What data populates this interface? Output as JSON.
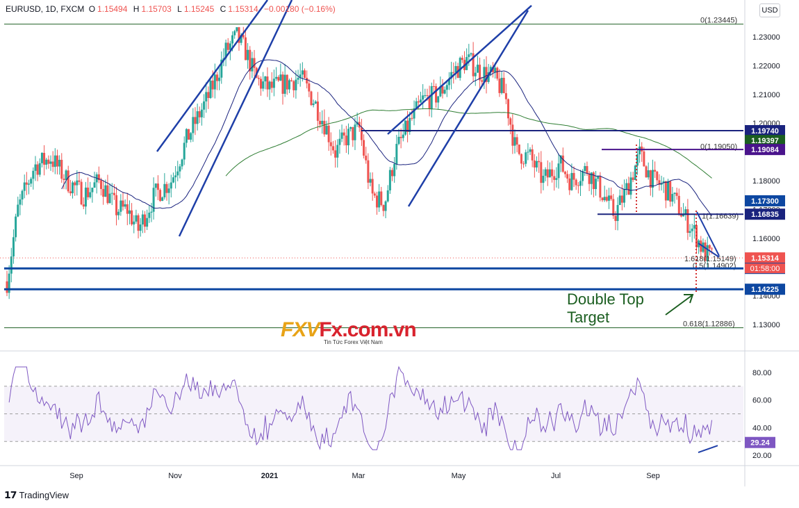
{
  "header": {
    "symbol": "EURUSD, 1D, FXCM",
    "open_label": "O",
    "open": "1.15494",
    "high_label": "H",
    "high": "1.15703",
    "low_label": "L",
    "low": "1.15245",
    "close_label": "C",
    "close": "1.15314",
    "change": "−0.00180 (−0.16%)"
  },
  "currency": "USD",
  "brand": "TradingView",
  "watermark": {
    "logo": "FXV",
    "site": "Fx.com.vn",
    "tagline": "Tin Tức Forex Việt Nam"
  },
  "annotation": {
    "line1": "Double Top",
    "line2": "Target"
  },
  "colors": {
    "up": "#26a69a",
    "down": "#ef5350",
    "ma50": "#1a237e",
    "ma200": "#2e7d32",
    "level": "#1a237e",
    "trend": "#1e3fa8",
    "rsi": "#7e57c2"
  },
  "chart_data": {
    "type": "candlestick",
    "price_axis": {
      "min": 1.122,
      "max": 1.238,
      "ticks": [
        "1.23000",
        "1.22000",
        "1.21000",
        "1.20000",
        "1.19000",
        "1.18000",
        "1.17000",
        "1.16000",
        "1.15000",
        "1.14000",
        "1.13000"
      ]
    },
    "time_axis": {
      "labels": [
        "Sep",
        "Nov",
        "2021",
        "Mar",
        "May",
        "Jul",
        "Sep"
      ]
    },
    "bars": 340,
    "ohlc_approx_path": [
      [
        0,
        1.145
      ],
      [
        10,
        1.17
      ],
      [
        25,
        1.185
      ],
      [
        40,
        1.188
      ],
      [
        55,
        1.18
      ],
      [
        70,
        1.175
      ],
      [
        85,
        1.18
      ],
      [
        100,
        1.17
      ],
      [
        110,
        1.17
      ],
      [
        120,
        1.163
      ],
      [
        135,
        1.175
      ],
      [
        150,
        1.18
      ],
      [
        165,
        1.195
      ],
      [
        185,
        1.21
      ],
      [
        200,
        1.225
      ],
      [
        210,
        1.23
      ],
      [
        218,
        1.225
      ],
      [
        228,
        1.215
      ],
      [
        240,
        1.212
      ],
      [
        255,
        1.214
      ],
      [
        268,
        1.216
      ],
      [
        280,
        1.208
      ],
      [
        290,
        1.2
      ],
      [
        300,
        1.19
      ],
      [
        310,
        1.195
      ],
      [
        322,
        1.198
      ],
      [
        333,
        1.175
      ],
      [
        345,
        1.172
      ],
      [
        355,
        1.19
      ],
      [
        368,
        1.2
      ],
      [
        380,
        1.208
      ],
      [
        395,
        1.21
      ],
      [
        408,
        1.218
      ],
      [
        420,
        1.222
      ],
      [
        432,
        1.218
      ],
      [
        445,
        1.216
      ],
      [
        455,
        1.21
      ],
      [
        465,
        1.19
      ],
      [
        478,
        1.188
      ],
      [
        490,
        1.18
      ],
      [
        505,
        1.186
      ],
      [
        515,
        1.18
      ],
      [
        530,
        1.184
      ],
      [
        545,
        1.175
      ],
      [
        555,
        1.168
      ],
      [
        565,
        1.176
      ],
      [
        578,
        1.189
      ],
      [
        590,
        1.18
      ],
      [
        600,
        1.178
      ],
      [
        610,
        1.173
      ],
      [
        618,
        1.168
      ],
      [
        628,
        1.162
      ],
      [
        637,
        1.155
      ],
      [
        645,
        1.153
      ]
    ],
    "levels": [
      {
        "price": 1.1974,
        "label": "1.19740",
        "color": "#1a237e"
      },
      {
        "price": 1.19397,
        "label": "1.19397",
        "color": "#1b5e20"
      },
      {
        "price": 1.19084,
        "label": "1.19084",
        "color": "#4a148c"
      },
      {
        "price": 1.173,
        "label": "1.17300",
        "color": "#0d47a1"
      },
      {
        "price": 1.16835,
        "label": "1.16835",
        "color": "#1a237e"
      },
      {
        "price": 1.15314,
        "label": "1.15314",
        "color": "#ef5350"
      },
      {
        "price": 1.1495,
        "label": "1.14950",
        "color": "#0d47a1"
      },
      {
        "price": 1.14225,
        "label": "1.14225",
        "color": "#0d47a1"
      }
    ],
    "countdown": "01:58:00",
    "fib_labels": [
      {
        "text": "0(1.23445)",
        "price": 1.23445
      },
      {
        "text": "0(1.19050)",
        "price": 1.1905
      },
      {
        "text": "1(1.16639)",
        "price": 1.16639
      },
      {
        "text": "1.618(1.15149)",
        "price": 1.15149
      },
      {
        "text": "0.5(1.14902)",
        "price": 1.14902
      },
      {
        "text": "0.618(1.12886)",
        "price": 1.12886
      }
    ],
    "rsi": {
      "axis_ticks": [
        "80.00",
        "60.00",
        "40.00",
        "20.00"
      ],
      "min": 15,
      "max": 88,
      "upper": 70,
      "mid": 50,
      "lower": 30,
      "current": "29.24"
    }
  }
}
